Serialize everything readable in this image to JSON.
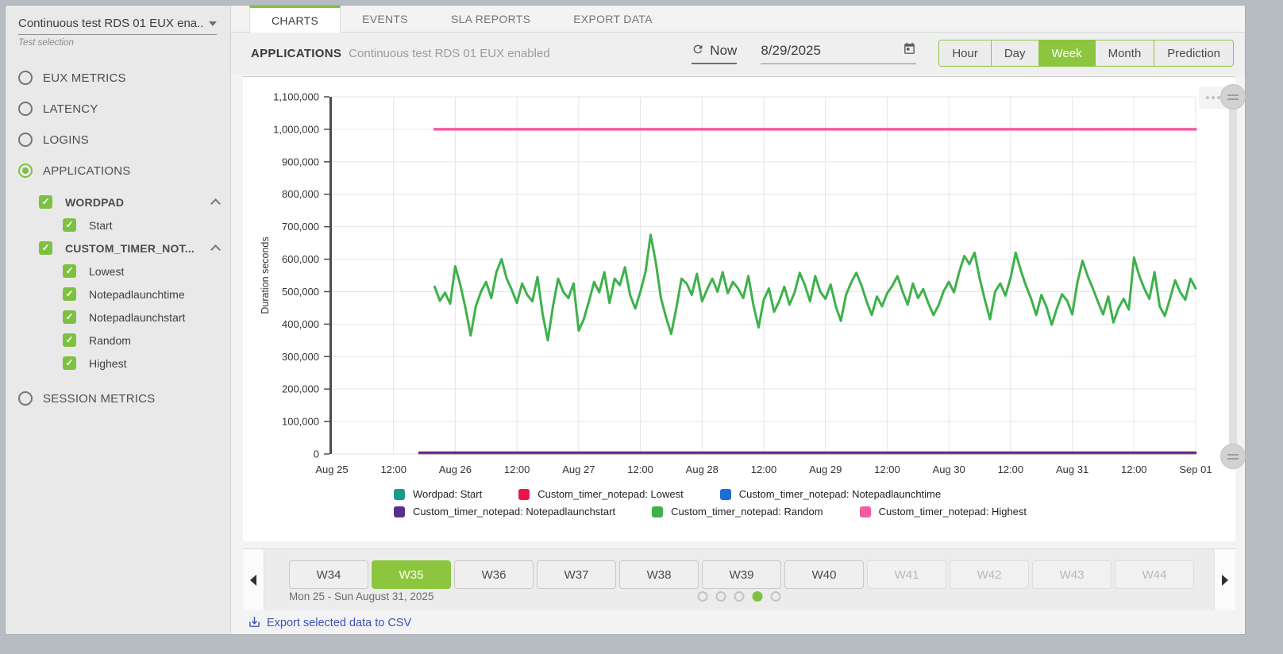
{
  "sidebar": {
    "test_selector": {
      "value": "Continuous test RDS 01 EUX ena...",
      "caption": "Test selection"
    },
    "items": [
      {
        "type": "radio",
        "label": "EUX METRICS",
        "selected": false
      },
      {
        "type": "radio",
        "label": "LATENCY",
        "selected": false
      },
      {
        "type": "radio",
        "label": "LOGINS",
        "selected": false
      },
      {
        "type": "radio",
        "label": "APPLICATIONS",
        "selected": true
      },
      {
        "type": "group",
        "label": "WORDPAD",
        "checked": true,
        "expanded": true
      },
      {
        "type": "child",
        "label": "Start",
        "checked": true
      },
      {
        "type": "group",
        "label": "CUSTOM_TIMER_NOT...",
        "checked": true,
        "expanded": true
      },
      {
        "type": "child",
        "label": "Lowest",
        "checked": true
      },
      {
        "type": "child",
        "label": "Notepadlaunchtime",
        "checked": true
      },
      {
        "type": "child",
        "label": "Notepadlaunchstart",
        "checked": true
      },
      {
        "type": "child",
        "label": "Random",
        "checked": true
      },
      {
        "type": "child",
        "label": "Highest",
        "checked": true
      },
      {
        "type": "radio",
        "label": "SESSION METRICS",
        "selected": false,
        "gap_top": true
      }
    ]
  },
  "tabs": [
    {
      "label": "CHARTS",
      "active": true
    },
    {
      "label": "EVENTS",
      "active": false
    },
    {
      "label": "SLA REPORTS",
      "active": false
    },
    {
      "label": "EXPORT DATA",
      "active": false
    }
  ],
  "header": {
    "section_label": "APPLICATIONS",
    "subtitle": "Continuous test RDS 01 EUX enabled",
    "now_label": "Now",
    "date_value": "8/29/2025",
    "range_buttons": [
      {
        "label": "Hour",
        "active": false
      },
      {
        "label": "Day",
        "active": false
      },
      {
        "label": "Week",
        "active": true
      },
      {
        "label": "Month",
        "active": false
      },
      {
        "label": "Prediction",
        "active": false
      }
    ]
  },
  "colors": {
    "accent_green": "#7ec142",
    "week_active_green": "#8cc63f",
    "export_link": "#3f51b5"
  },
  "chart_data": {
    "type": "line",
    "ylabel": "Duration seconds",
    "ylim": [
      0,
      1100000
    ],
    "y_tick_step": 100000,
    "x_hours_range": [
      0,
      168
    ],
    "x_tick_step_hours": 12,
    "x_tick_labels": [
      "Aug 25",
      "12:00",
      "Aug 26",
      "12:00",
      "Aug 27",
      "12:00",
      "Aug 28",
      "12:00",
      "Aug 29",
      "12:00",
      "Aug 30",
      "12:00",
      "Aug 31",
      "12:00",
      "Sep 01"
    ],
    "grid": true,
    "legend_position": "bottom",
    "series": [
      {
        "name": "Wordpad: Start",
        "color": "#179c8f",
        "type": "flat",
        "start_hour": 17,
        "end_hour": 168,
        "value": 2000
      },
      {
        "name": "Custom_timer_notepad: Lowest",
        "color": "#e8174b",
        "type": "flat",
        "start_hour": 17,
        "end_hour": 168,
        "value": 2500
      },
      {
        "name": "Custom_timer_notepad: Notepadlaunchtime",
        "color": "#1c6fd4",
        "type": "flat",
        "start_hour": 17,
        "end_hour": 168,
        "value": 3200
      },
      {
        "name": "Custom_timer_notepad: Notepadlaunchstart",
        "color": "#5c2d91",
        "type": "flat",
        "start_hour": 17,
        "end_hour": 168,
        "value": 5000
      },
      {
        "name": "Custom_timer_notepad: Random",
        "color": "#3eb14b",
        "type": "line",
        "start_hour": 20,
        "step_hours": 1,
        "values": [
          515000,
          472000,
          497000,
          463000,
          578000,
          520000,
          448000,
          365000,
          455000,
          500000,
          530000,
          480000,
          560000,
          600000,
          540000,
          505000,
          465000,
          525000,
          490000,
          470000,
          545000,
          430000,
          350000,
          455000,
          540000,
          500000,
          480000,
          525000,
          380000,
          415000,
          470000,
          530000,
          498000,
          560000,
          465000,
          540000,
          520000,
          575000,
          490000,
          448000,
          500000,
          560000,
          675000,
          590000,
          480000,
          420000,
          370000,
          450000,
          540000,
          525000,
          490000,
          555000,
          470000,
          508000,
          540000,
          500000,
          560000,
          495000,
          530000,
          510000,
          480000,
          548000,
          458000,
          390000,
          475000,
          510000,
          438000,
          470000,
          515000,
          460000,
          498000,
          558000,
          520000,
          470000,
          548000,
          500000,
          478000,
          522000,
          455000,
          410000,
          490000,
          528000,
          558000,
          520000,
          470000,
          428000,
          485000,
          455000,
          495000,
          518000,
          548000,
          500000,
          460000,
          525000,
          480000,
          508000,
          465000,
          428000,
          458000,
          502000,
          530000,
          498000,
          560000,
          610000,
          585000,
          620000,
          540000,
          475000,
          415000,
          500000,
          525000,
          488000,
          543000,
          620000,
          565000,
          518000,
          478000,
          428000,
          490000,
          452000,
          398000,
          448000,
          492000,
          472000,
          430000,
          528000,
          595000,
          548000,
          510000,
          468000,
          430000,
          485000,
          405000,
          450000,
          478000,
          445000,
          605000,
          550000,
          510000,
          478000,
          560000,
          455000,
          425000,
          478000,
          535000,
          498000,
          475000,
          540000,
          510000
        ]
      },
      {
        "name": "Custom_timer_notepad: Highest",
        "color": "#f45ba0",
        "type": "flat",
        "start_hour": 20,
        "end_hour": 168,
        "value": 1000000
      }
    ]
  },
  "week_selector": {
    "weeks": [
      {
        "label": "W34",
        "state": "normal"
      },
      {
        "label": "W35",
        "state": "active"
      },
      {
        "label": "W36",
        "state": "normal"
      },
      {
        "label": "W37",
        "state": "normal"
      },
      {
        "label": "W38",
        "state": "normal"
      },
      {
        "label": "W39",
        "state": "normal"
      },
      {
        "label": "W40",
        "state": "normal"
      },
      {
        "label": "W41",
        "state": "disabled"
      },
      {
        "label": "W42",
        "state": "disabled"
      },
      {
        "label": "W43",
        "state": "disabled"
      },
      {
        "label": "W44",
        "state": "disabled"
      }
    ],
    "range_label": "Mon 25 - Sun August 31, 2025",
    "dots": {
      "count": 5,
      "active_index": 3
    }
  },
  "footer": {
    "export_label": "Export selected data to CSV"
  }
}
